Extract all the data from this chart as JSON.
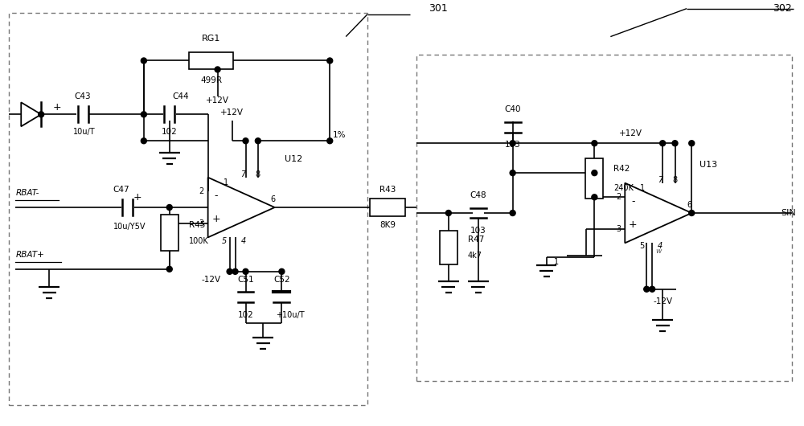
{
  "bg_color": "#ffffff",
  "fig_width": 10.0,
  "fig_height": 5.3,
  "labels": {
    "301": "301",
    "302": "302",
    "RG1": "RG1",
    "499R": "499R",
    "+12V": "+12V",
    "1pct": "1%",
    "C43": "C43",
    "10uT_C43": "10u/T",
    "C44": "C44",
    "102_C44": "102",
    "C47": "C47",
    "10uY5V": "10u/Y5V",
    "RBAT_minus": "RBAT-",
    "R45": "R45",
    "100K": "100K",
    "RBAT_plus": "RBAT+",
    "neg12V": "-12V",
    "C51": "C51",
    "102_C51": "102",
    "C52": "C52",
    "plus10uT": "+10u/T",
    "U12": "U12",
    "R43": "R43",
    "8K9": "8K9",
    "C40": "C40",
    "103_C40": "103",
    "C48": "C48",
    "103_C48": "103",
    "R42": "R42",
    "240K": "240K",
    "R47": "R47",
    "4k7": "4k7",
    "U13": "U13",
    "SIN": "SIN",
    "neg12V_U13": "-12V"
  }
}
